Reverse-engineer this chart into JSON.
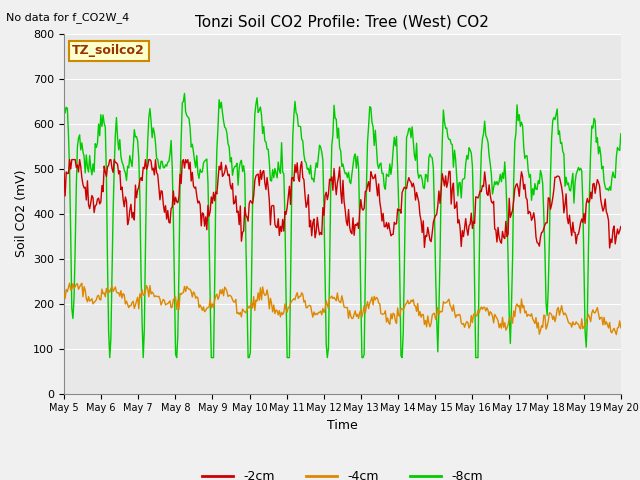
{
  "title": "Tonzi Soil CO2 Profile: Tree (West) CO2",
  "top_left_text": "No data for f_CO2W_4",
  "box_label": "TZ_soilco2",
  "ylabel": "Soil CO2 (mV)",
  "xlabel": "Time",
  "ylim": [
    0,
    800
  ],
  "yticks": [
    0,
    100,
    200,
    300,
    400,
    500,
    600,
    700,
    800
  ],
  "legend_labels": [
    "-2cm",
    "-4cm",
    "-8cm"
  ],
  "line_colors": [
    "#cc0000",
    "#dd8800",
    "#00cc00"
  ],
  "bg_color": "#e8e8e8",
  "n_points": 500,
  "x_start": 5,
  "x_end": 20,
  "xtick_positions": [
    5,
    6,
    7,
    8,
    9,
    10,
    11,
    12,
    13,
    14,
    15,
    16,
    17,
    18,
    19,
    20
  ],
  "xtick_labels": [
    "May 5",
    "May 6",
    "May 7",
    "May 8",
    "May 9",
    "May 10",
    "May 11",
    "May 12",
    "May 13",
    "May 14",
    "May 15",
    "May 16",
    "May 17",
    "May 18",
    "May 19",
    "May 20"
  ]
}
